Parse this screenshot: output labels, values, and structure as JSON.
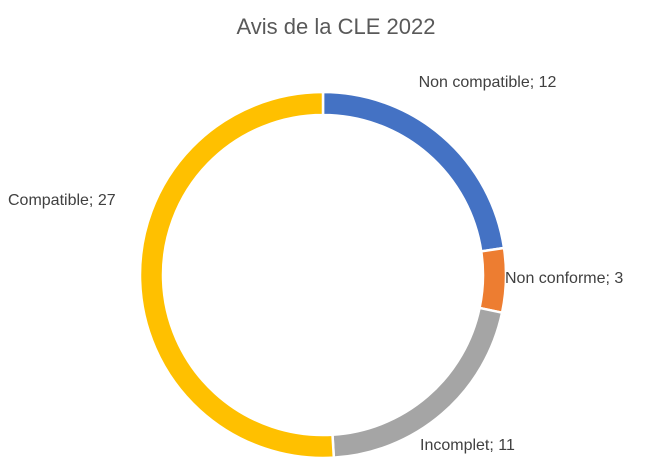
{
  "chart_data": {
    "type": "donut",
    "title": "Avis de la CLE 2022",
    "values": [
      12,
      3,
      11,
      27
    ],
    "value_labels": [
      "Non compatible; 12",
      "Non conforme; 3",
      "Incomplet; 11",
      "Compatible; 27"
    ],
    "colors": [
      "#4472c4",
      "#ed7d31",
      "#a5a5a5",
      "#ffc000"
    ]
  }
}
